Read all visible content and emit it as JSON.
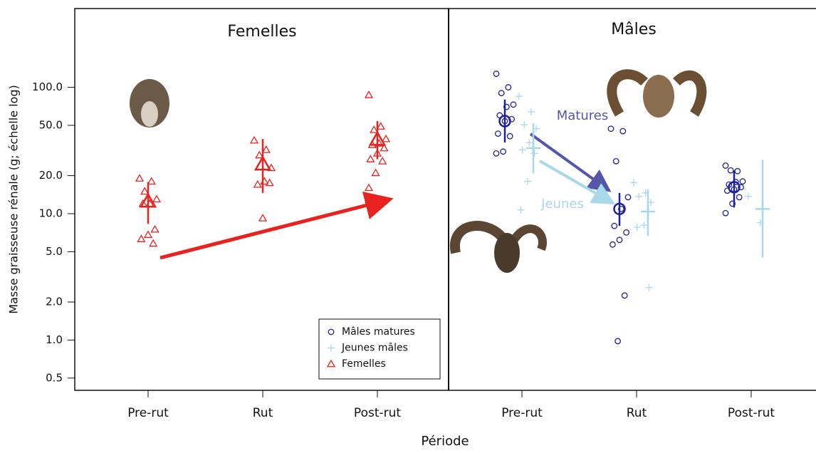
{
  "y_label": "Masse graisseuse rénale (g; échelle log)",
  "x_label": "Période",
  "chart_data": [
    {
      "type": "scatter",
      "title": "Femelles",
      "categories": [
        "Pre-rut",
        "Rut",
        "Post-rut"
      ],
      "log_scale": true,
      "ylim": [
        0.4,
        420
      ],
      "yticks": [
        0.5,
        {
          "value": 1,
          "label": "1.0"
        },
        {
          "value": 2,
          "label": "2.0"
        },
        {
          "value": 5,
          "label": "5.0"
        },
        {
          "value": 10,
          "label": "10.0"
        },
        {
          "value": 20,
          "label": "20.0"
        },
        {
          "value": 50,
          "label": "50.0"
        },
        {
          "value": 100,
          "label": "100.0"
        }
      ],
      "legend": "lower right",
      "series": [
        {
          "name": "Femelles",
          "color": "#e8231f",
          "marker": "triangle",
          "values": [
            [
              19,
              18,
              15,
              13,
              12,
              12,
              7.5,
              6.8,
              6.3,
              5.8
            ],
            [
              38,
              32,
              29,
              23,
              18,
              17,
              17.5,
              9.2
            ],
            [
              87,
              49,
              46,
              39,
              36,
              35,
              33,
              30,
              27,
              26,
              21,
              16
            ]
          ],
          "mean": [
            12.5,
            24.6,
            38.6
          ],
          "ci": [
            [
              8.3,
              17.8
            ],
            [
              14.6,
              39
            ],
            [
              27,
              54
            ]
          ]
        }
      ]
    },
    {
      "type": "scatter",
      "title": "Mâles",
      "categories": [
        "Pre-rut",
        "Rut",
        "Post-rut"
      ],
      "log_scale": true,
      "ylim": [
        0.4,
        420
      ],
      "annotations": [
        "Matures",
        "Jeunes"
      ],
      "series": [
        {
          "name": "Mâles matures",
          "color": "#1f1f99",
          "marker": "circle",
          "values": [
            [
              128,
              100,
              90,
              73,
              70,
              60,
              56,
              54,
              43,
              41,
              31,
              30
            ],
            [
              47,
              45,
              26,
              13.5,
              10.9,
              8,
              7.1,
              6.2,
              5.7,
              2.25,
              0.98
            ],
            [
              24,
              21.7,
              22,
              18,
              17.8,
              17,
              16.2,
              15.6,
              15.2,
              13.5,
              12,
              10.1
            ]
          ],
          "mean": [
            54,
            10.9,
            16.2
          ],
          "ci": [
            [
              36.6,
              80
            ],
            [
              8,
              14.6
            ],
            [
              11.2,
              22
            ]
          ]
        },
        {
          "name": "Jeunes mâles",
          "color": "#a8d8ea",
          "marker": "plus",
          "values": [
            [
              85,
              64,
              50.5,
              47,
              36.5,
              32,
              30,
              18,
              10.7
            ],
            [
              17.6,
              14.6,
              13.7,
              12.3,
              8.1,
              7.8,
              2.6
            ],
            [
              13.7,
              8.5
            ]
          ],
          "mean": [
            33,
            10.4,
            10.9
          ],
          "ci": [
            [
              20.8,
              52
            ],
            [
              6.7,
              15.6
            ],
            [
              4.5,
              26.7
            ]
          ]
        }
      ]
    }
  ]
}
